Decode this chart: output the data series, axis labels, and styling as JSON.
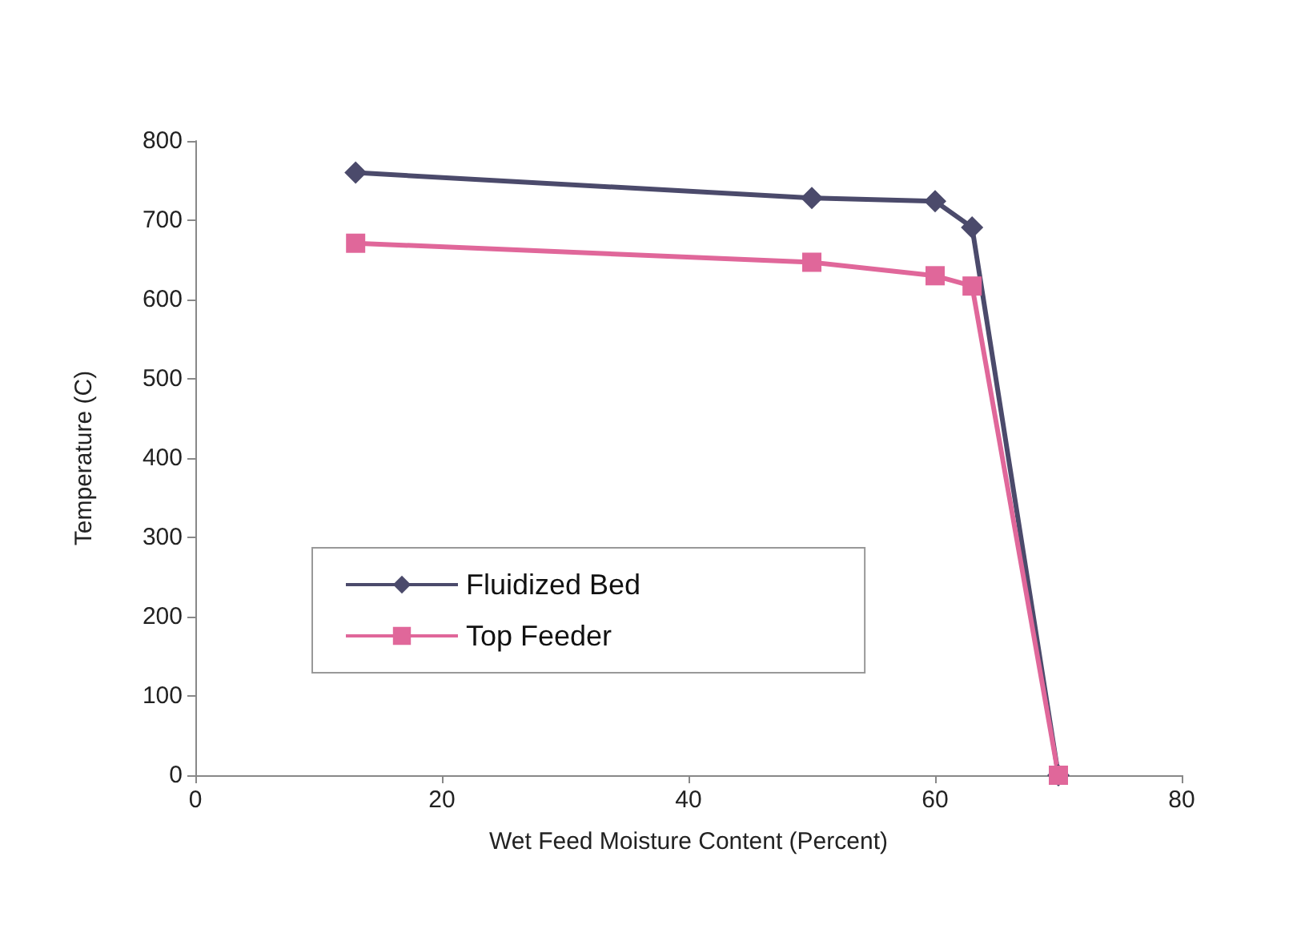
{
  "chart_data": {
    "type": "line",
    "xlabel": "Wet Feed Moisture Content (Percent)",
    "ylabel": "Temperature (C)",
    "x": [
      13,
      50,
      60,
      63,
      70
    ],
    "series": [
      {
        "name": "Fluidized Bed",
        "color": "#4b4a6b",
        "marker": "diamond",
        "values": [
          760,
          728,
          724,
          691,
          0
        ]
      },
      {
        "name": "Top Feeder",
        "color": "#e0679a",
        "marker": "square",
        "values": [
          671,
          647,
          630,
          617,
          0
        ]
      }
    ],
    "xlim": [
      0,
      80
    ],
    "xticks": [
      0,
      20,
      40,
      60,
      80
    ],
    "ylim": [
      0,
      800
    ],
    "yticks": [
      0,
      100,
      200,
      300,
      400,
      500,
      600,
      700,
      800
    ],
    "grid": false,
    "legend": "left"
  }
}
